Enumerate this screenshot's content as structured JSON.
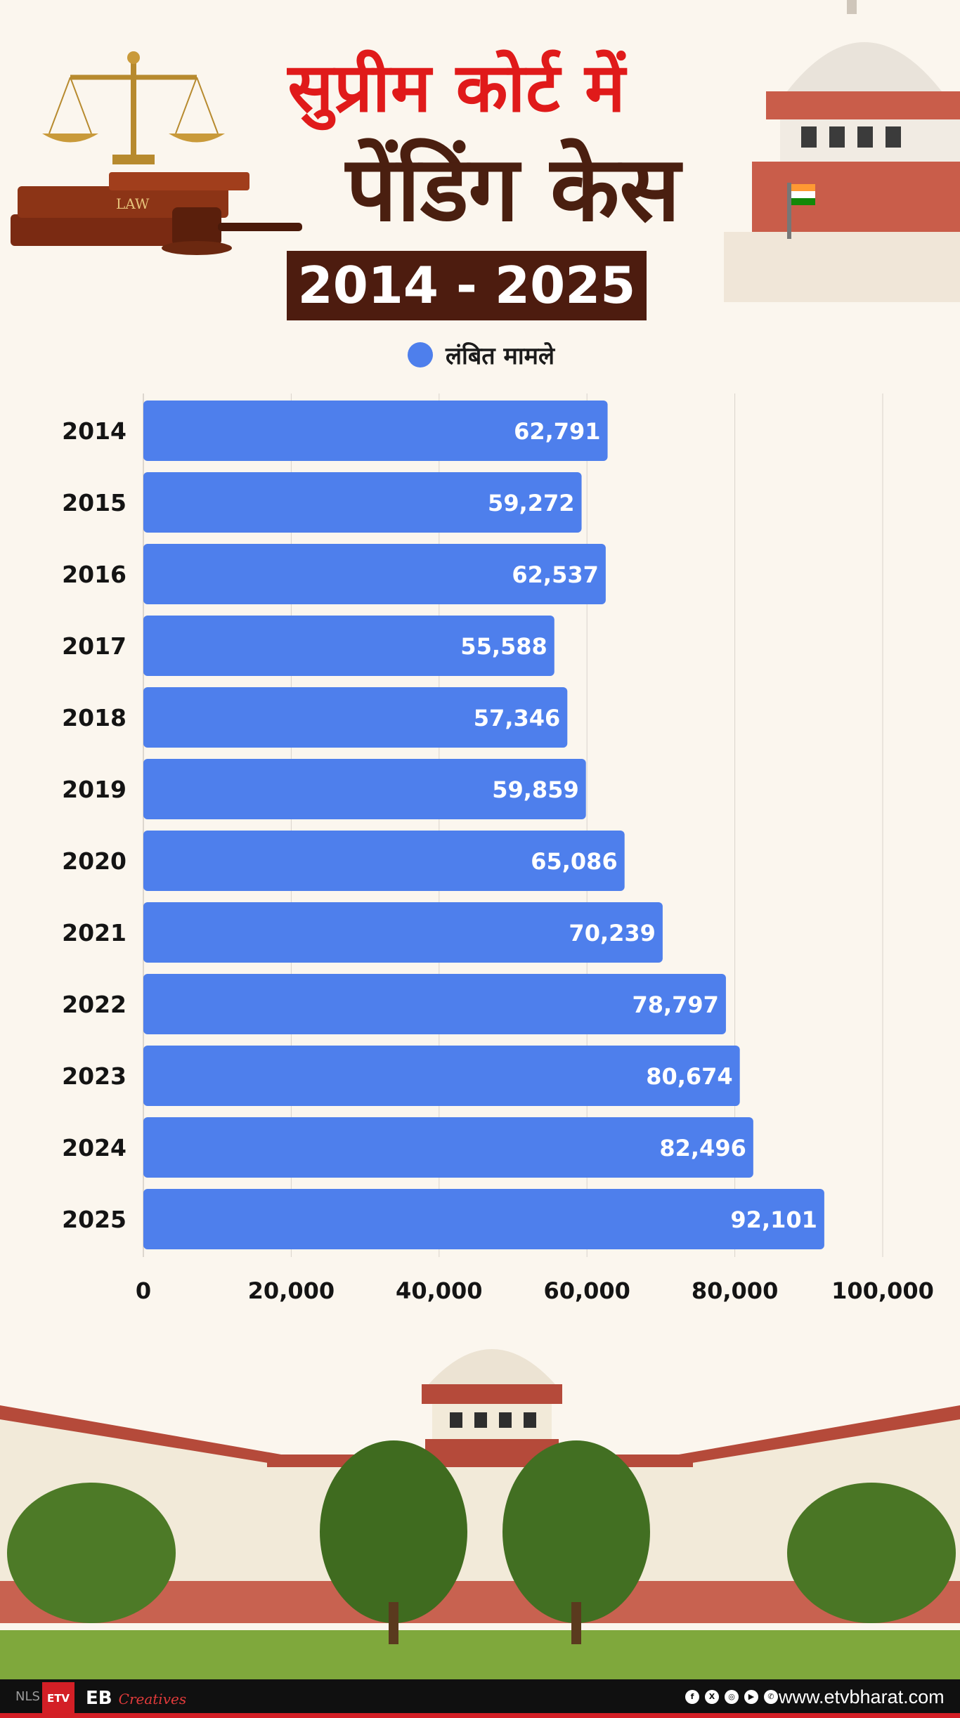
{
  "header": {
    "title_line1": "सुप्रीम कोर्ट में",
    "title_line2": "पेंडिंग केस",
    "year_range": "2014 - 2025"
  },
  "colors": {
    "bar": "#4e7fec",
    "title_red": "#e01a1a",
    "title_brown": "#4a1f10",
    "year_box": "#4d1c0f"
  },
  "chart_data": {
    "type": "bar",
    "orientation": "horizontal",
    "categories": [
      "2014",
      "2015",
      "2016",
      "2017",
      "2018",
      "2019",
      "2020",
      "2021",
      "2022",
      "2023",
      "2024",
      "2025"
    ],
    "series": [
      {
        "name": "लंबित मामले",
        "values": [
          62791,
          59272,
          62537,
          55588,
          57346,
          59859,
          65086,
          70239,
          78797,
          80674,
          82496,
          92101
        ],
        "labels": [
          "62,791",
          "59,272",
          "62,537",
          "55,588",
          "57,346",
          "59,859",
          "65,086",
          "70,239",
          "78,797",
          "80,674",
          "82,496",
          "92,101"
        ]
      }
    ],
    "xlim": [
      0,
      100000
    ],
    "xticks": [
      0,
      20000,
      40000,
      60000,
      80000,
      100000
    ],
    "xtick_labels": [
      "0",
      "20,000",
      "40,000",
      "60,000",
      "80,000",
      "100,000"
    ],
    "grid": true,
    "legend": "top-center"
  },
  "footer": {
    "nls": "NLS",
    "etv_logo": "ETV",
    "eb_label": "EB",
    "eb_creatives": "Creatives",
    "social_icons": [
      "facebook-icon",
      "x-icon",
      "instagram-icon",
      "youtube-icon",
      "whatsapp-icon"
    ],
    "website": "www.etvbharat.com"
  }
}
